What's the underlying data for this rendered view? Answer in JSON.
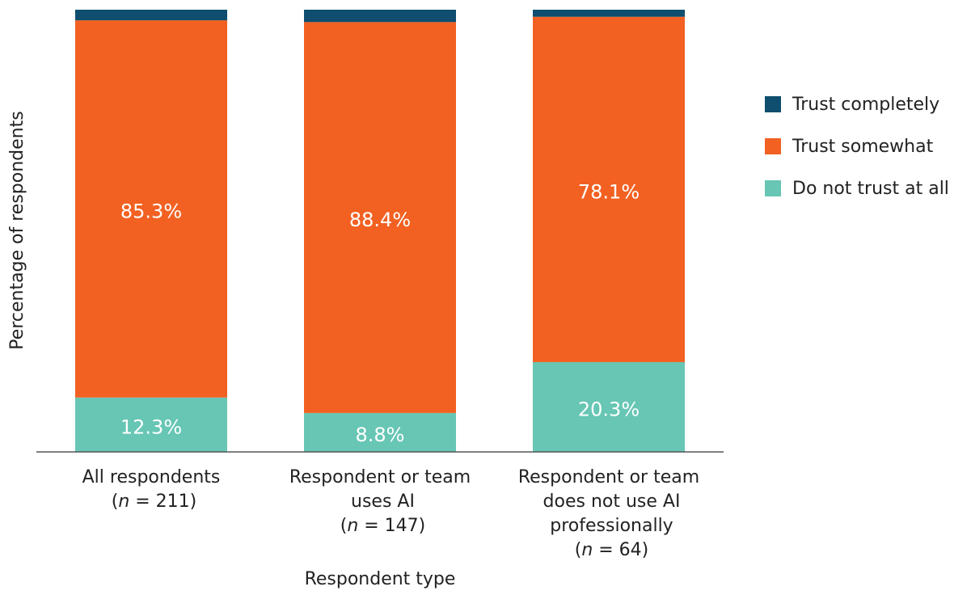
{
  "chart_data": {
    "type": "stacked_bar",
    "categories": [
      "All respondents\n(n = 211)",
      "Respondent or team\nuses AI\n(n = 147)",
      "Respondent or team\ndoes not use AI\nprofessionally\n(n = 64)"
    ],
    "xlabel": "Respondent type",
    "ylabel": "Percentage of respondents",
    "ylim": [
      0,
      100
    ],
    "legend": "right",
    "series": [
      {
        "name": "Trust completely",
        "color": "#0f4e6e",
        "values": [
          2.4,
          2.8,
          1.6
        ]
      },
      {
        "name": "Trust somewhat",
        "color": "#f26122",
        "values": [
          85.3,
          88.4,
          78.1
        ],
        "value_labels": [
          "85.3%",
          "88.4%",
          "78.1%"
        ]
      },
      {
        "name": "Do not trust at all",
        "color": "#67c6b4",
        "values": [
          12.3,
          8.8,
          20.3
        ],
        "value_labels": [
          "12.3%",
          "8.8%",
          "20.3%"
        ]
      }
    ]
  }
}
